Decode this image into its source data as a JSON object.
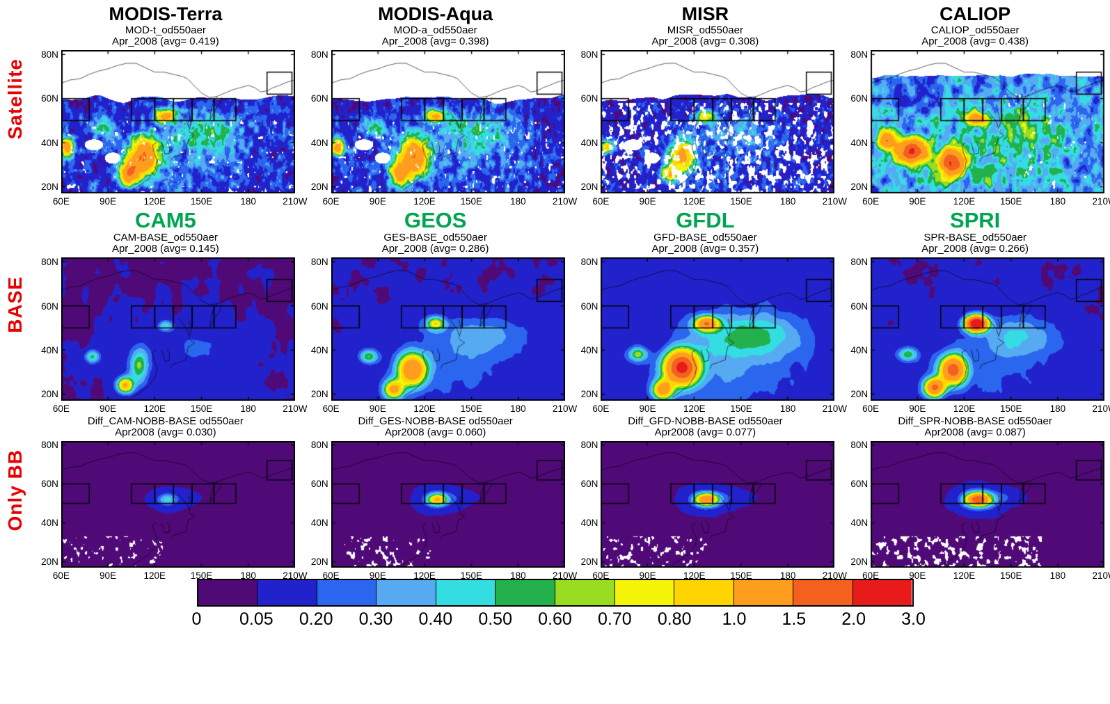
{
  "rows": [
    {
      "label": "Satellite",
      "panels": [
        {
          "title": "MODIS-Terra",
          "sub1": "MOD-t_od550aer",
          "sub2": "Apr_2008 (avg= 0.419)"
        },
        {
          "title": "MODIS-Aqua",
          "sub1": "MOD-a_od550aer",
          "sub2": "Apr_2008 (avg= 0.398)"
        },
        {
          "title": "MISR",
          "sub1": "MISR_od550aer",
          "sub2": "Apr_2008 (avg= 0.308)"
        },
        {
          "title": "CALIOP",
          "sub1": "CALIOP_od550aer",
          "sub2": "Apr_2008 (avg= 0.438)"
        }
      ]
    },
    {
      "label": "BASE",
      "panels": [
        {
          "title": "CAM5",
          "sub1": "CAM-BASE_od550aer",
          "sub2": "Apr_2008 (avg= 0.145)"
        },
        {
          "title": "GEOS",
          "sub1": "GES-BASE_od550aer",
          "sub2": "Apr_2008 (avg= 0.286)"
        },
        {
          "title": "GFDL",
          "sub1": "GFD-BASE_od550aer",
          "sub2": "Apr_2008 (avg= 0.357)"
        },
        {
          "title": "SPRI",
          "sub1": "SPR-BASE_od550aer",
          "sub2": "Apr_2008 (avg= 0.266)"
        }
      ]
    },
    {
      "label": "Only BB",
      "panels": [
        {
          "title": "",
          "sub1": "Diff_CAM-NOBB-BASE od550aer",
          "sub2": "Apr2008 (avg= 0.030)"
        },
        {
          "title": "",
          "sub1": "Diff_GES-NOBB-BASE od550aer",
          "sub2": "Apr2008 (avg= 0.060)"
        },
        {
          "title": "",
          "sub1": "Diff_GFD-NOBB-BASE od550aer",
          "sub2": "Apr2008 (avg= 0.077)"
        },
        {
          "title": "",
          "sub1": "Diff_SPR-NOBB-BASE od550aer",
          "sub2": "Apr2008 (avg= 0.087)"
        }
      ]
    }
  ],
  "axes": {
    "x_ticks": [
      {
        "label": "60E",
        "lon": 60
      },
      {
        "label": "90E",
        "lon": 90
      },
      {
        "label": "120E",
        "lon": 120
      },
      {
        "label": "150E",
        "lon": 150
      },
      {
        "label": "180",
        "lon": 180
      },
      {
        "label": "210W",
        "lon": 210
      }
    ],
    "y_ticks": [
      {
        "label": "80N",
        "lat": 80
      },
      {
        "label": "60N",
        "lat": 60
      },
      {
        "label": "40N",
        "lat": 40
      },
      {
        "label": "20N",
        "lat": 20
      }
    ],
    "lon_range": [
      60,
      210
    ],
    "lat_range": [
      17,
      82
    ]
  },
  "colorbar": {
    "labels": [
      "0",
      "0.05",
      "0.20",
      "0.30",
      "0.40",
      "0.50",
      "0.60",
      "0.70",
      "0.80",
      "1.0",
      "1.5",
      "2.0",
      "3.0"
    ]
  },
  "chart_data": {
    "type": "heatmap",
    "variable": "od550aer (aerosol optical depth at 550 nm)",
    "period": "April 2008",
    "row_groups": [
      "Satellite",
      "BASE",
      "Only BB"
    ],
    "satellite_columns": [
      "MODIS-Terra",
      "MODIS-Aqua",
      "MISR",
      "CALIOP"
    ],
    "model_columns": [
      "CAM5",
      "GEOS",
      "GFDL",
      "SPRI"
    ],
    "panels": [
      {
        "row": "Satellite",
        "name": "MODIS-Terra",
        "id": "MOD-t_od550aer",
        "avg": 0.419
      },
      {
        "row": "Satellite",
        "name": "MODIS-Aqua",
        "id": "MOD-a_od550aer",
        "avg": 0.398
      },
      {
        "row": "Satellite",
        "name": "MISR",
        "id": "MISR_od550aer",
        "avg": 0.308
      },
      {
        "row": "Satellite",
        "name": "CALIOP",
        "id": "CALIOP_od550aer",
        "avg": 0.438
      },
      {
        "row": "BASE",
        "name": "CAM5",
        "id": "CAM-BASE_od550aer",
        "avg": 0.145
      },
      {
        "row": "BASE",
        "name": "GEOS",
        "id": "GES-BASE_od550aer",
        "avg": 0.286
      },
      {
        "row": "BASE",
        "name": "GFDL",
        "id": "GFD-BASE_od550aer",
        "avg": 0.357
      },
      {
        "row": "BASE",
        "name": "SPRI",
        "id": "SPR-BASE_od550aer",
        "avg": 0.266
      },
      {
        "row": "Only BB",
        "name": "CAM5",
        "id": "Diff_CAM-NOBB-BASE od550aer",
        "avg": 0.03
      },
      {
        "row": "Only BB",
        "name": "GEOS",
        "id": "Diff_GES-NOBB-BASE od550aer",
        "avg": 0.06
      },
      {
        "row": "Only BB",
        "name": "GFDL",
        "id": "Diff_GFD-NOBB-BASE od550aer",
        "avg": 0.077
      },
      {
        "row": "Only BB",
        "name": "SPRI",
        "id": "Diff_SPR-NOBB-BASE od550aer",
        "avg": 0.087
      }
    ],
    "color_levels": [
      0,
      0.05,
      0.2,
      0.3,
      0.4,
      0.5,
      0.6,
      0.7,
      0.8,
      1.0,
      1.5,
      2.0,
      3.0
    ],
    "color_hex": [
      "#500a78",
      "#2222cc",
      "#2a66ee",
      "#55aaf2",
      "#33dde2",
      "#22b14c",
      "#99dd22",
      "#f5f50a",
      "#ffd400",
      "#ff9d1e",
      "#f4601e",
      "#e81a1a"
    ],
    "region_boxes": [
      [
        60,
        78,
        50,
        60
      ],
      [
        105,
        120,
        50,
        60
      ],
      [
        120,
        132,
        50,
        60
      ],
      [
        132,
        144,
        50,
        60
      ],
      [
        144,
        158,
        50,
        60
      ],
      [
        158,
        172,
        50,
        60
      ],
      [
        192,
        208,
        62,
        72
      ]
    ],
    "lon_range": [
      60,
      210
    ],
    "lat_range": [
      17,
      82
    ],
    "accent_colors": {
      "row_label_red": "#e80000",
      "model_title_green": "#00a551"
    }
  }
}
